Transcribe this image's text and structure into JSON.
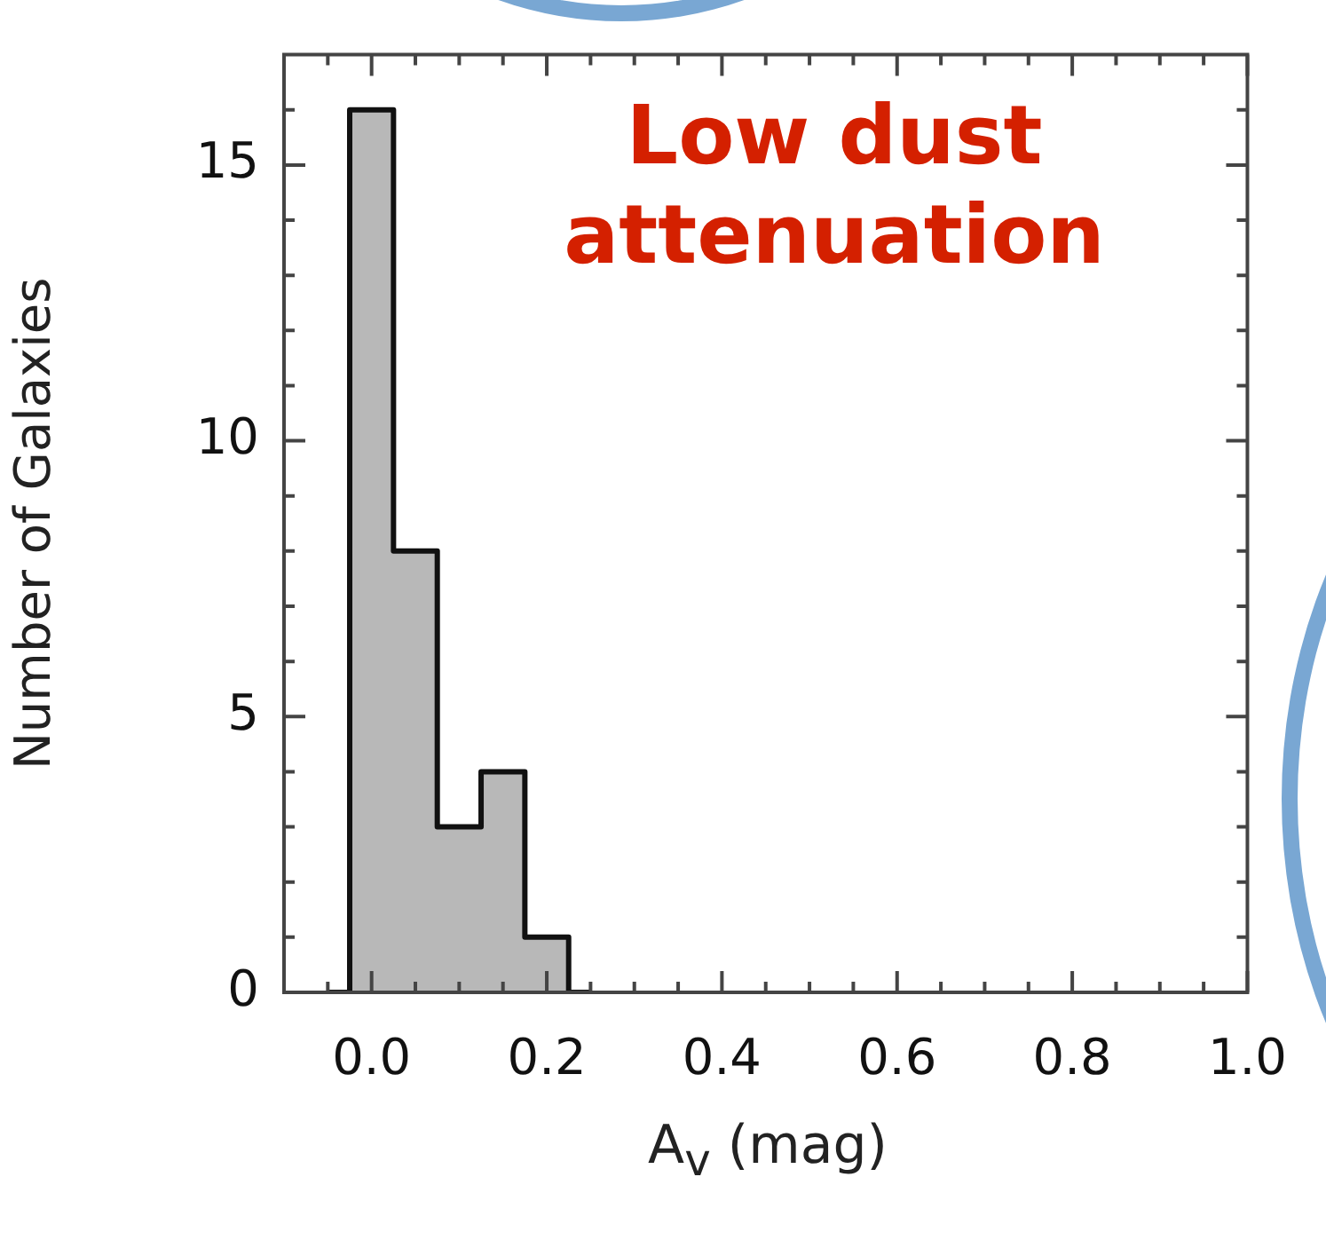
{
  "chart_data": {
    "type": "histogram",
    "xlabel": "A$_{v}$ (mag)",
    "ylabel": "Number of Galaxies",
    "bins": [
      -0.05,
      -0.025,
      0.025,
      0.075,
      0.125,
      0.175,
      0.225,
      0.25
    ],
    "values": [
      0,
      16,
      8,
      3,
      4,
      1,
      0
    ],
    "color": "#b8b8b8",
    "xlim": [
      -0.1,
      1.0
    ],
    "xticks": [
      {
        "value": -0.05,
        "label": null
      },
      {
        "value": 0.0,
        "label": "0.0"
      },
      {
        "value": 0.05,
        "label": null
      },
      {
        "value": 0.1,
        "label": null
      },
      {
        "value": 0.15,
        "label": null
      },
      {
        "value": 0.2,
        "label": "0.2"
      },
      {
        "value": 0.25,
        "label": null
      },
      {
        "value": 0.3,
        "label": null
      },
      {
        "value": 0.35,
        "label": null
      },
      {
        "value": 0.4,
        "label": "0.4"
      },
      {
        "value": 0.45,
        "label": null
      },
      {
        "value": 0.5,
        "label": null
      },
      {
        "value": 0.55,
        "label": null
      },
      {
        "value": 0.6,
        "label": "0.6"
      },
      {
        "value": 0.65,
        "label": null
      },
      {
        "value": 0.7,
        "label": null
      },
      {
        "value": 0.75,
        "label": null
      },
      {
        "value": 0.8,
        "label": "0.8"
      },
      {
        "value": 0.85,
        "label": null
      },
      {
        "value": 0.9,
        "label": null
      },
      {
        "value": 0.95,
        "label": null
      },
      {
        "value": 1.0,
        "label": "1.0"
      }
    ],
    "ylim": [
      0,
      17
    ],
    "yticks": [
      0,
      {
        "value": 1,
        "label": null
      },
      {
        "value": 2,
        "label": null
      },
      {
        "value": 3,
        "label": null
      },
      {
        "value": 4,
        "label": null
      },
      5,
      {
        "value": 6,
        "label": null
      },
      {
        "value": 7,
        "label": null
      },
      {
        "value": 8,
        "label": null
      },
      {
        "value": 9,
        "label": null
      },
      10,
      {
        "value": 11,
        "label": null
      },
      {
        "value": 12,
        "label": null
      },
      {
        "value": 13,
        "label": null
      },
      {
        "value": 14,
        "label": null
      },
      15,
      {
        "value": 16,
        "label": null
      }
    ],
    "grid": false,
    "legend": false,
    "annotations": [
      "Low dust attenuation"
    ]
  }
}
